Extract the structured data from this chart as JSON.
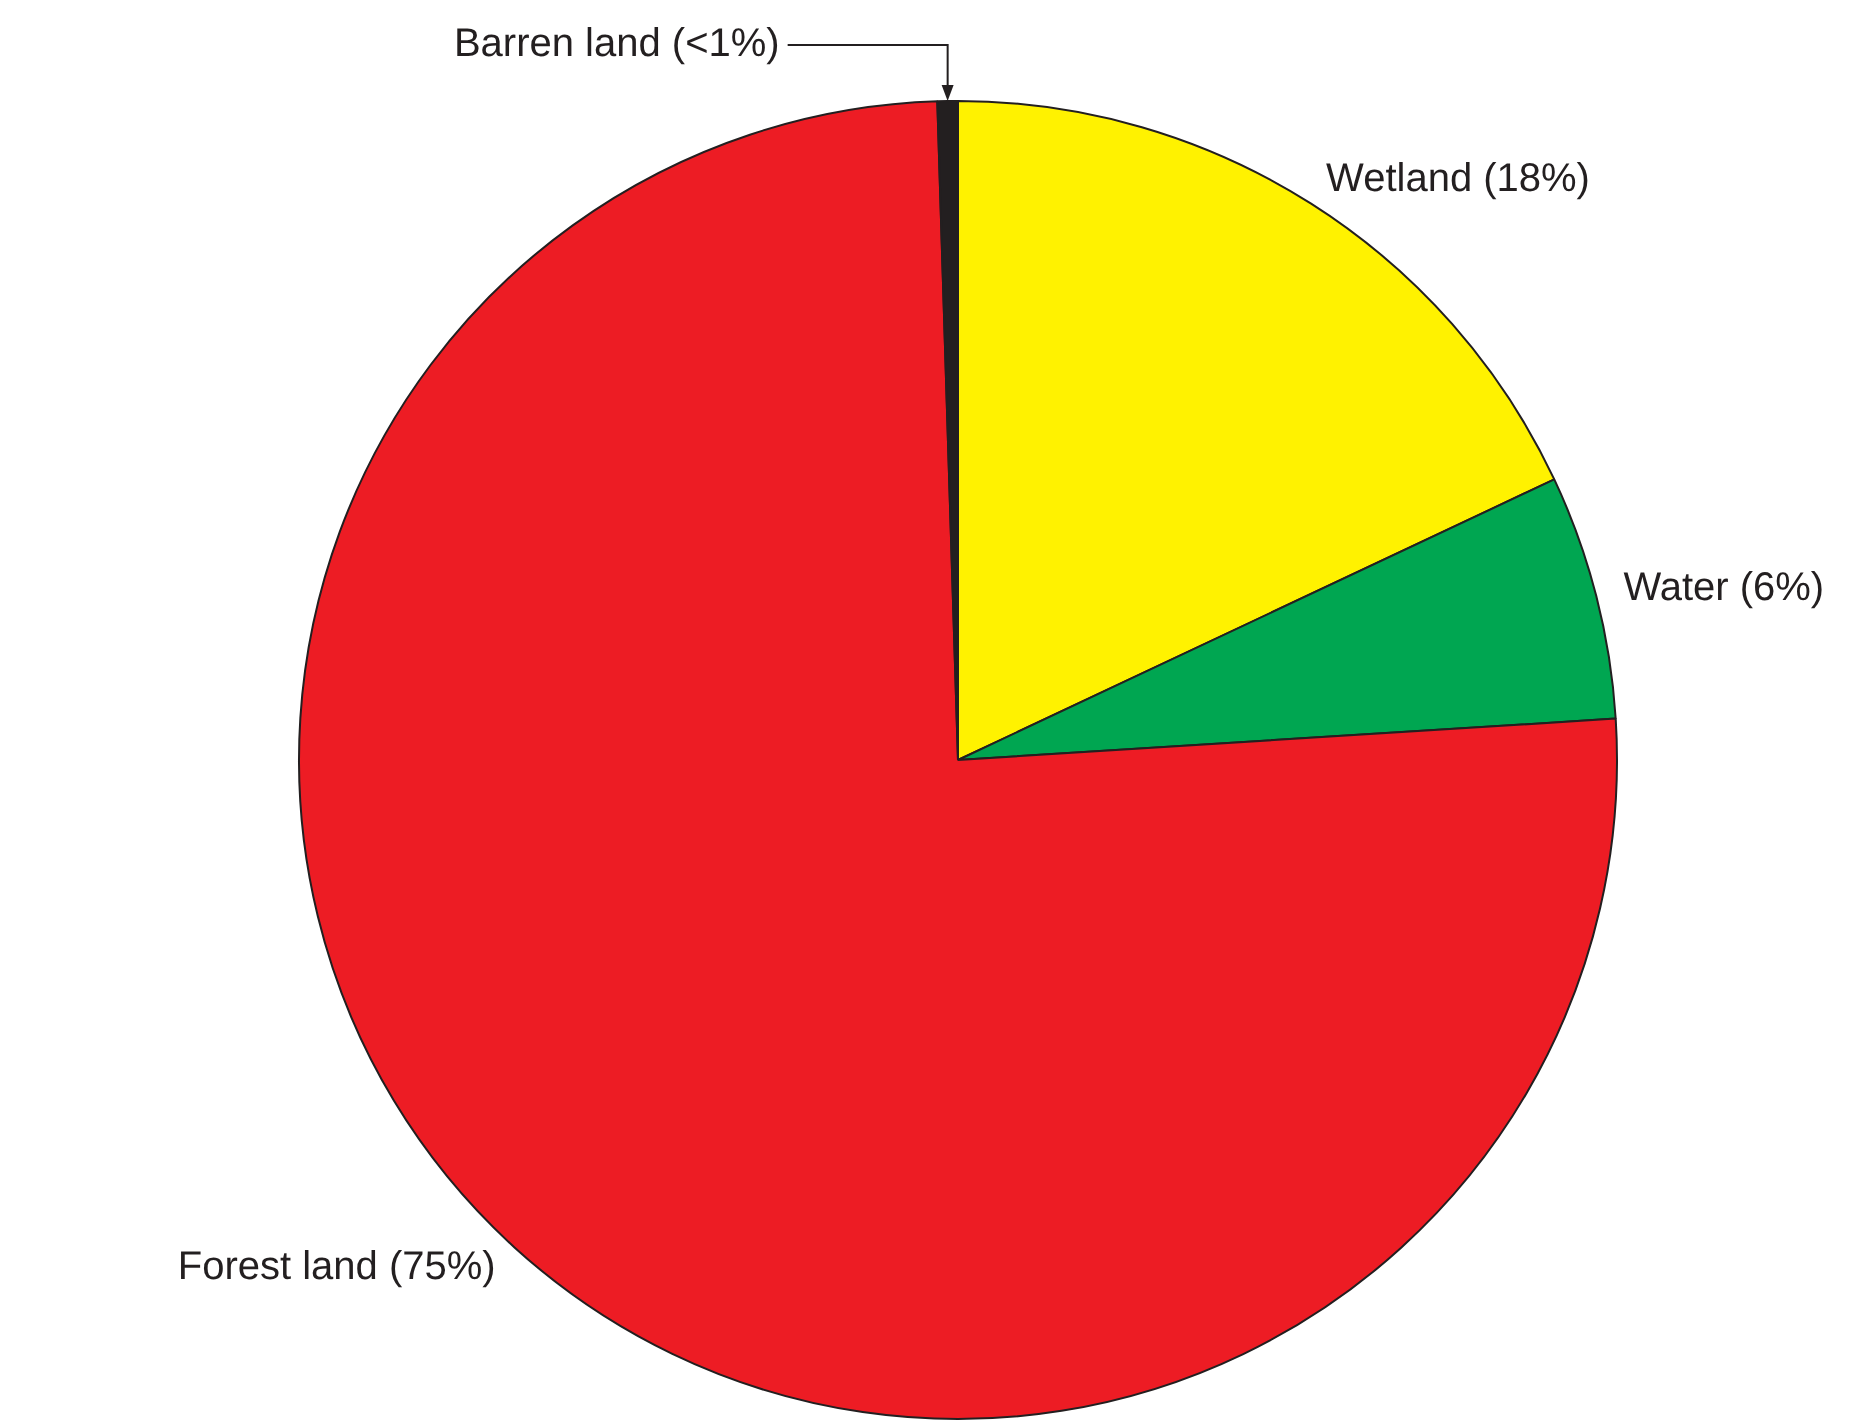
{
  "chart_data": {
    "type": "pie",
    "categories": [
      "Wetland (18%)",
      "Water (6%)",
      "Forest land (75%)",
      "Barren land (<1%)"
    ],
    "values": [
      18,
      6,
      75.5,
      0.5
    ],
    "colors": [
      "#fff200",
      "#00a651",
      "#ed1c24",
      "#231f20"
    ],
    "legend": false
  }
}
